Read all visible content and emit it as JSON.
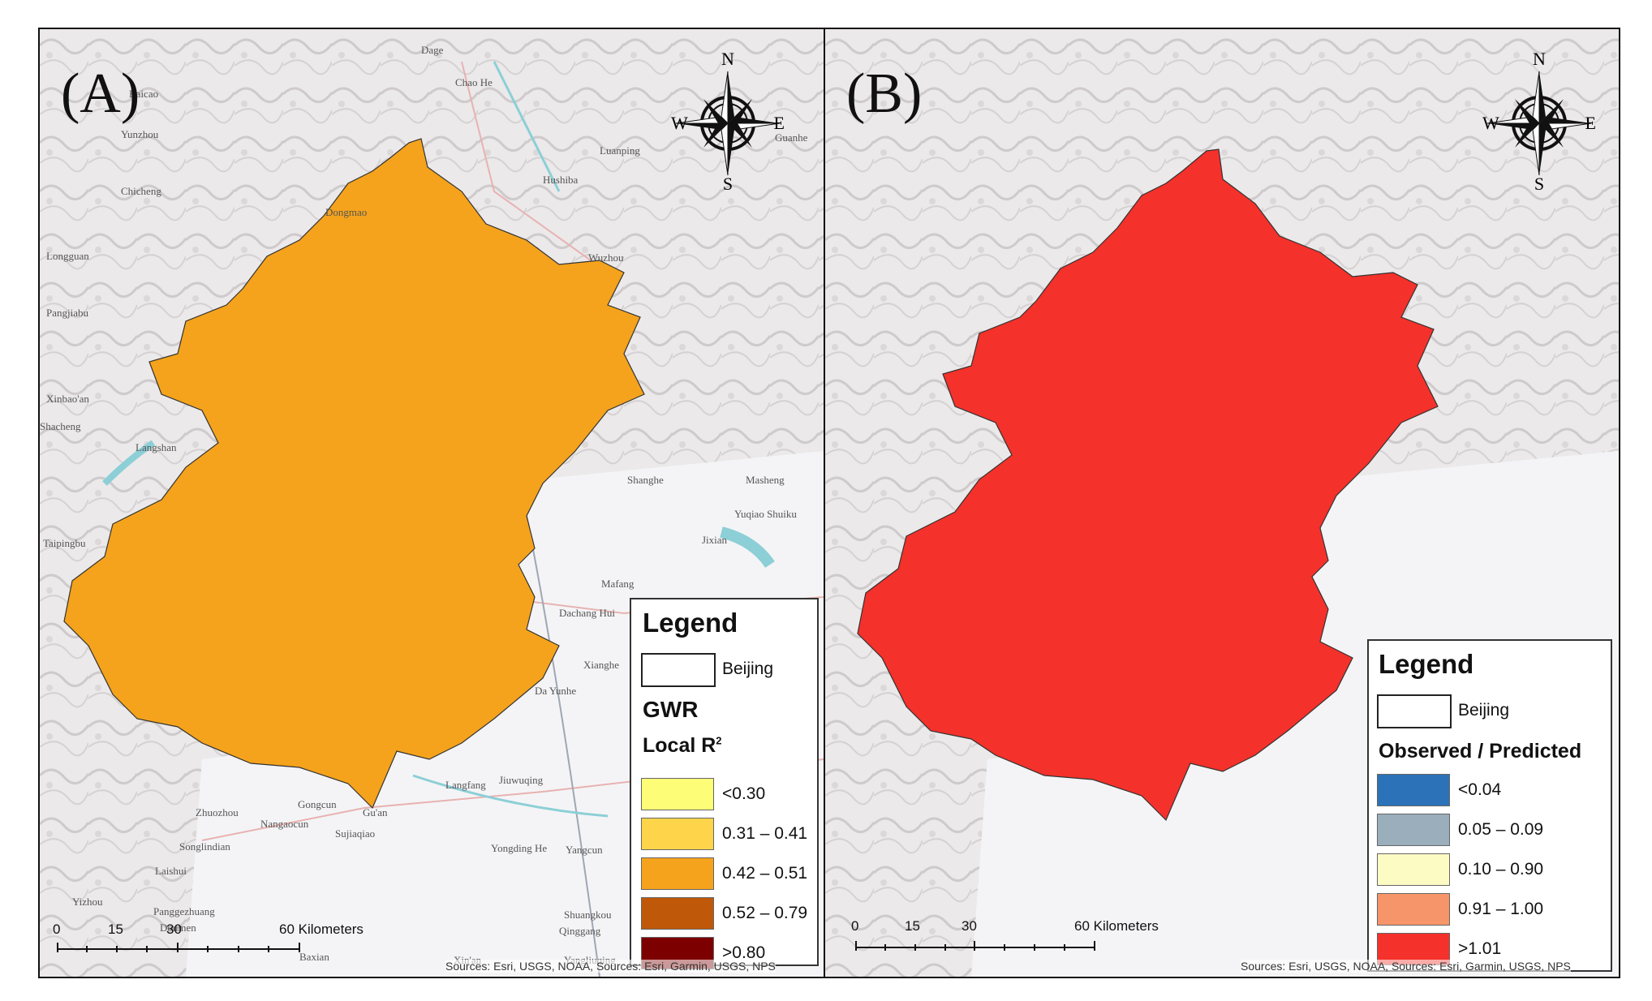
{
  "panels": [
    {
      "label": "(A)",
      "compass": {
        "n": "N",
        "e": "E",
        "s": "S",
        "w": "W"
      },
      "legend": {
        "title": "Legend",
        "boundary_label": "Beijing",
        "layer": "GWR",
        "field": "Local R",
        "field_superscript": "2",
        "classes": [
          {
            "label": "<0.30",
            "color": "#fdfd78"
          },
          {
            "label": "0.31 – 0.41",
            "color": "#fdd44a"
          },
          {
            "label": "0.42 – 0.51",
            "color": "#f5a31c"
          },
          {
            "label": "0.52 – 0.79",
            "color": "#c0580a"
          },
          {
            "label": ">0.80",
            "color": "#7d0000"
          }
        ]
      },
      "scale": {
        "ticks": [
          "0",
          "15",
          "30",
          "60 Kilometers"
        ]
      },
      "sources": "Sources: Esri, USGS, NOAA, Sources: Esri, Garmin, USGS, NPS",
      "places": [
        "Dage",
        "Baicao",
        "Yunzhou",
        "Chicheng",
        "Longguan",
        "Pangjiabu",
        "Xinbao'an",
        "Shacheng",
        "Langshan",
        "Taipingbu",
        "Luanping",
        "Hushiba",
        "Chao He",
        "Dongmao",
        "Wuzhou",
        "Masheng",
        "Yuqiao Shuiku",
        "Jixian",
        "Mafang",
        "Dachang Hui",
        "Xianghe",
        "Da Yunhe",
        "Langfang",
        "Jiuwuqing",
        "Zhuozhou",
        "Gongcun",
        "Nangaocun",
        "Sujiaqiao",
        "Songlindian",
        "Laishui",
        "Gu'an",
        "Yongding He",
        "Yangcun",
        "Yizhou",
        "Panggezhuang",
        "Doumen",
        "Shuangkou",
        "Qinggang",
        "Xin'an",
        "Baxian",
        "Yangliuqing",
        "Shanghe",
        "Guanhe"
      ]
    },
    {
      "label": "(B)",
      "compass": {
        "n": "N",
        "e": "E",
        "s": "S",
        "w": "W"
      },
      "legend": {
        "title": "Legend",
        "boundary_label": "Beijing",
        "field": "Observed / Predicted",
        "classes": [
          {
            "label": "<0.04",
            "color": "#2b72b8"
          },
          {
            "label": "0.05 – 0.09",
            "color": "#9aaebb"
          },
          {
            "label": "0.10 – 0.90",
            "color": "#fdfbc4"
          },
          {
            "label": "0.91 – 1.00",
            "color": "#f6946a"
          },
          {
            "label": ">1.01",
            "color": "#f4312a"
          }
        ]
      },
      "scale": {
        "ticks": [
          "0",
          "15",
          "30",
          "60 Kilometers"
        ]
      },
      "sources": "Sources: Esri, USGS, NOAA, Sources: Esri, Garmin, USGS, NPS"
    }
  ]
}
